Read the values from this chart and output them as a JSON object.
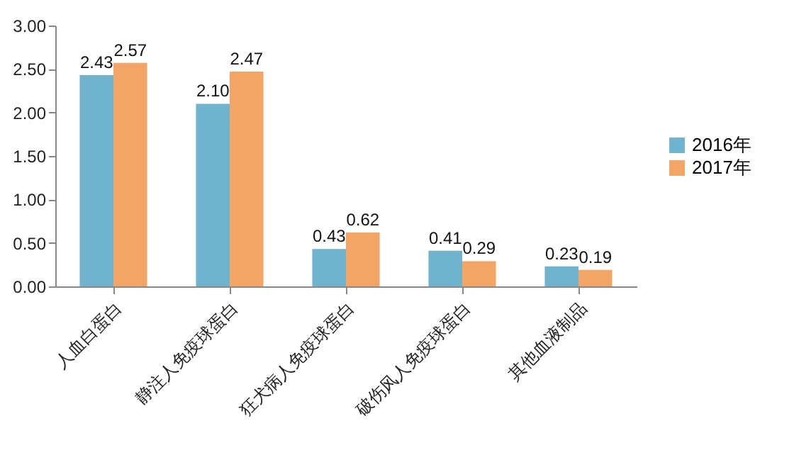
{
  "chart_data": {
    "type": "bar",
    "categories": [
      "人血白蛋白",
      "静注人免疫球蛋白",
      "狂犬病人免疫球蛋白",
      "破伤风人免疫球蛋白",
      "其他血液制品"
    ],
    "series": [
      {
        "name": "2016年",
        "color": "#6fb3cf",
        "values": [
          2.43,
          2.1,
          0.43,
          0.41,
          0.23
        ],
        "value_labels": [
          "2.43",
          "2.10",
          "0.43",
          "0.41",
          "0.23"
        ]
      },
      {
        "name": "2017年",
        "color": "#f3a565",
        "values": [
          2.57,
          2.47,
          0.62,
          0.29,
          0.19
        ],
        "value_labels": [
          "2.57",
          "2.47",
          "0.62",
          "0.29",
          "0.19"
        ]
      }
    ],
    "ylim": [
      0,
      3
    ],
    "yticks": [
      {
        "value": 0,
        "label": "0.00"
      },
      {
        "value": 0.5,
        "label": "0.50"
      },
      {
        "value": 1,
        "label": "1.00"
      },
      {
        "value": 1.5,
        "label": "1.50"
      },
      {
        "value": 2,
        "label": "2.00"
      },
      {
        "value": 2.5,
        "label": "2.50"
      },
      {
        "value": 3,
        "label": "3.00"
      }
    ],
    "legend": "right",
    "grid": false
  }
}
